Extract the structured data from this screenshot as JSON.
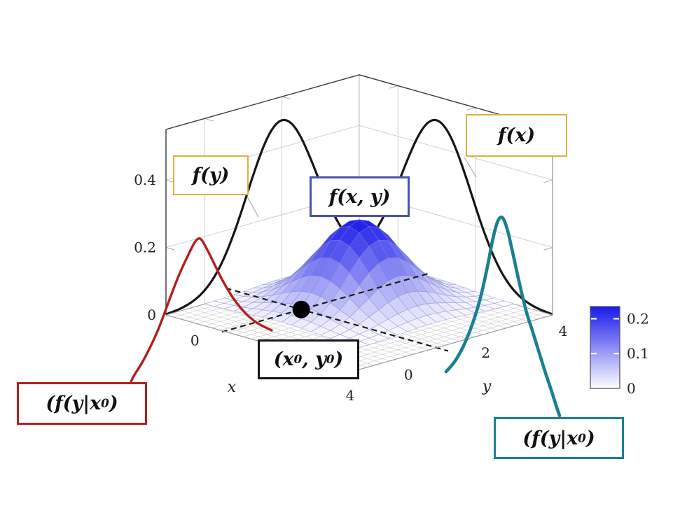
{
  "figure_title": "",
  "colors": {
    "background": "#ffffff",
    "orange_box": "#E2AF3C",
    "blue_box": "#4A52AE",
    "black_box": "#141414",
    "red": "#B02020",
    "teal": "#19808F",
    "curve_black": "#161616",
    "surface_low": "#ffffff",
    "surface_high": "#1919EB",
    "floor_grid": "#cbcbcb",
    "wall_grid": "#cccccc",
    "box_edge_dark": "#3a3a3a",
    "box_edge_light": "#9a9a9a",
    "dashed_line": "#1c1c1c",
    "leader_line": "#aaaaaa",
    "tick_text": "#222222"
  },
  "annotations": {
    "marginal_y_label": "f(y)",
    "marginal_x_label": "f(x)",
    "joint_label": "f(x, y)",
    "point_label": "(x_0, y_0)",
    "conditional_left_label": "(f(y|x_0)",
    "conditional_right_label": "(f(y|x_0)"
  },
  "chart_data": {
    "type": "surface",
    "title": "Bivariate normal joint density f(x,y) with marginal densities f(x), f(y) and conditional densities f(y|x0)",
    "axes": {
      "x": {
        "label": "x",
        "range": [
          -1,
          4
        ],
        "ticks": [
          {
            "value": 0,
            "label": "0"
          },
          {
            "value": 4,
            "label": "4"
          }
        ]
      },
      "y": {
        "label": "y",
        "range": [
          -1,
          4
        ],
        "ticks": [
          {
            "value": 0,
            "label": "0"
          },
          {
            "value": 2,
            "label": "2"
          },
          {
            "value": 4,
            "label": "4"
          }
        ]
      },
      "z": {
        "label": "",
        "range": [
          0,
          0.55
        ],
        "ticks": [
          {
            "value": 0,
            "label": "0"
          },
          {
            "value": 0.2,
            "label": "0.2"
          },
          {
            "value": 0.4,
            "label": "0.4"
          }
        ]
      }
    },
    "joint_density": {
      "distribution": "bivariate_normal",
      "mean": [
        1,
        2
      ],
      "sigma": [
        0.8,
        0.8
      ],
      "peak_value": 0.25,
      "mesh_range_x": [
        -1,
        3
      ],
      "mesh_range_y": [
        0,
        4
      ],
      "mesh_divisions": 16
    },
    "marginal_x": {
      "label": "f(x)",
      "mean": 1,
      "sigma": 0.9,
      "peak_value": 0.48,
      "wall": "y=4"
    },
    "marginal_y": {
      "label": "f(y)",
      "mean": 2,
      "sigma": 0.9,
      "peak_value": 0.48,
      "wall": "x=-1"
    },
    "conditional_point": {
      "label": "(x_0, y_0)",
      "x0": 0.5,
      "y0": 1
    },
    "conditional_curves": [
      {
        "label": "(f(y|x_0)",
        "color_key": "red",
        "side": "lower-left"
      },
      {
        "label": "(f(y|x_0)",
        "color_key": "teal",
        "side": "lower-right"
      }
    ],
    "colorbar": {
      "range": [
        0,
        0.235
      ],
      "ticks": [
        {
          "value": 0,
          "label": "0"
        },
        {
          "value": 0.1,
          "label": "0.1"
        },
        {
          "value": 0.2,
          "label": "0.2"
        }
      ],
      "gradient": [
        "#ffffff",
        "#1919EB"
      ]
    },
    "grid": {
      "floor_step": 0.2,
      "wall_x_lines": [
        0,
        2,
        4
      ],
      "wall_y_lines": [
        0,
        2,
        4
      ],
      "wall_z_lines": [
        0.2,
        0.4
      ]
    }
  }
}
